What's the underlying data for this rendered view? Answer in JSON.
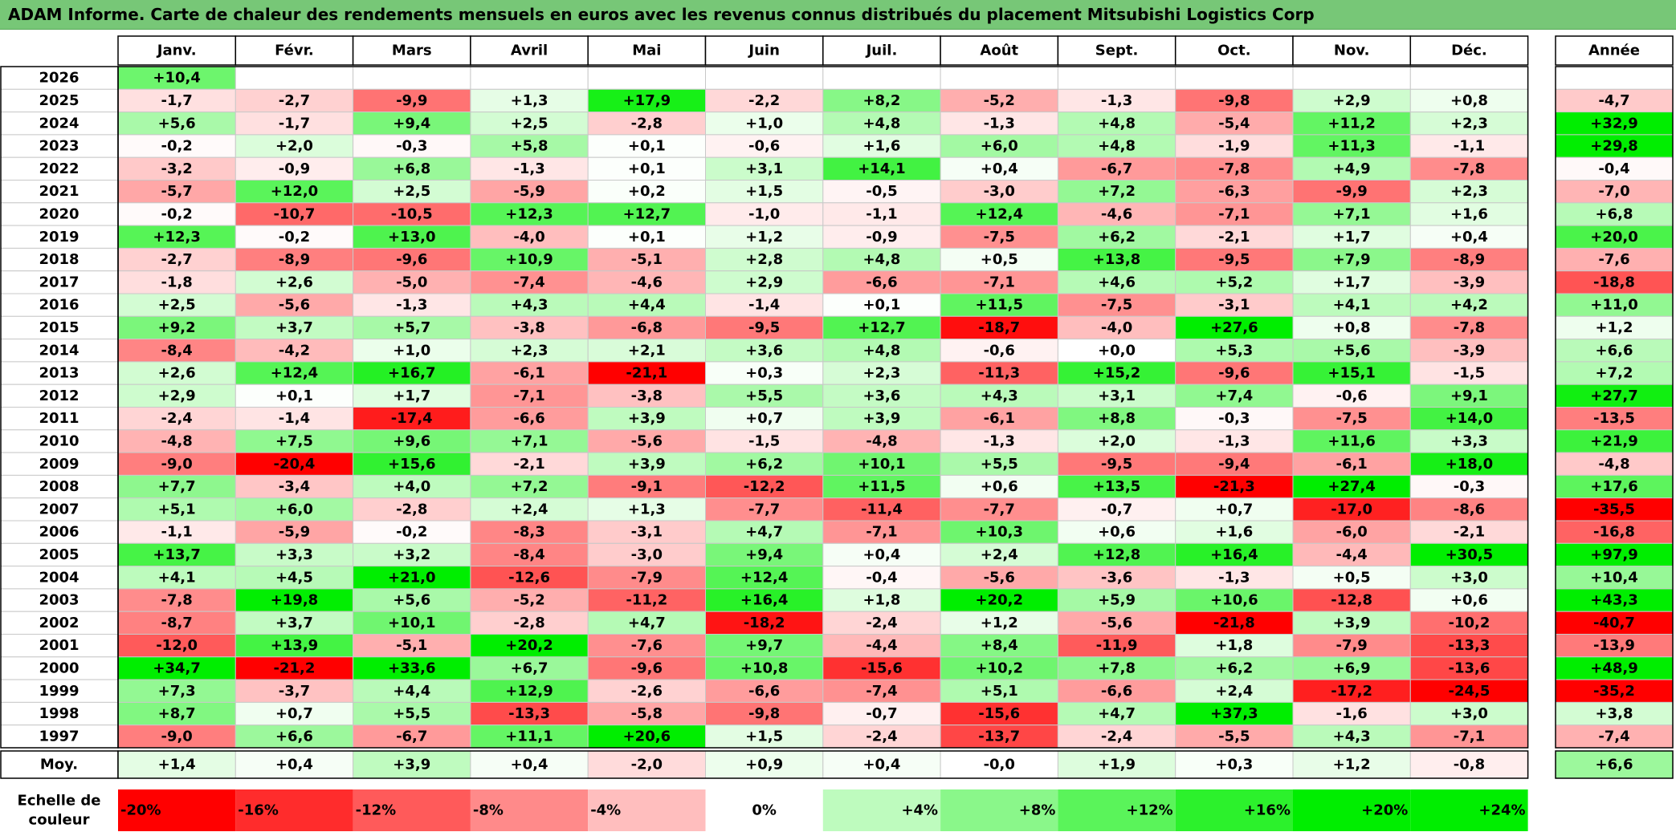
{
  "title": "ADAM Informe. Carte de chaleur des rendements mensuels en euros avec les revenus connus distribués du placement Mitsubishi Logistics Corp",
  "chart_data": {
    "type": "heatmap",
    "title": "ADAM Informe. Carte de chaleur des rendements mensuels en euros avec les revenus connus distribués du placement Mitsubishi Logistics Corp",
    "columns": [
      "Janv.",
      "Févr.",
      "Mars",
      "Avril",
      "Mai",
      "Juin",
      "Juil.",
      "Août",
      "Sept.",
      "Oct.",
      "Nov.",
      "Déc."
    ],
    "year_header": "Année",
    "rows": [
      {
        "year": "2026",
        "values": [
          "+10,4",
          "",
          "",
          "",
          "",
          "",
          "",
          "",
          "",
          "",
          "",
          ""
        ],
        "annual": ""
      },
      {
        "year": "2025",
        "values": [
          "-1,7",
          "-2,7",
          "-9,9",
          "+1,3",
          "+17,9",
          "-2,2",
          "+8,2",
          "-5,2",
          "-1,3",
          "-9,8",
          "+2,9",
          "+0,8"
        ],
        "annual": "-4,7"
      },
      {
        "year": "2024",
        "values": [
          "+5,6",
          "-1,7",
          "+9,4",
          "+2,5",
          "-2,8",
          "+1,0",
          "+4,8",
          "-1,3",
          "+4,8",
          "-5,4",
          "+11,2",
          "+2,3"
        ],
        "annual": "+32,9"
      },
      {
        "year": "2023",
        "values": [
          "-0,2",
          "+2,0",
          "-0,3",
          "+5,8",
          "+0,1",
          "-0,6",
          "+1,6",
          "+6,0",
          "+4,8",
          "-1,9",
          "+11,3",
          "-1,1"
        ],
        "annual": "+29,8"
      },
      {
        "year": "2022",
        "values": [
          "-3,2",
          "-0,9",
          "+6,8",
          "-1,3",
          "+0,1",
          "+3,1",
          "+14,1",
          "+0,4",
          "-6,7",
          "-7,8",
          "+4,9",
          "-7,8"
        ],
        "annual": "-0,4"
      },
      {
        "year": "2021",
        "values": [
          "-5,7",
          "+12,0",
          "+2,5",
          "-5,9",
          "+0,2",
          "+1,5",
          "-0,5",
          "-3,0",
          "+7,2",
          "-6,3",
          "-9,9",
          "+2,3"
        ],
        "annual": "-7,0"
      },
      {
        "year": "2020",
        "values": [
          "-0,2",
          "-10,7",
          "-10,5",
          "+12,3",
          "+12,7",
          "-1,0",
          "-1,1",
          "+12,4",
          "-4,6",
          "-7,1",
          "+7,1",
          "+1,6"
        ],
        "annual": "+6,8"
      },
      {
        "year": "2019",
        "values": [
          "+12,3",
          "-0,2",
          "+13,0",
          "-4,0",
          "+0,1",
          "+1,2",
          "-0,9",
          "-7,5",
          "+6,2",
          "-2,1",
          "+1,7",
          "+0,4"
        ],
        "annual": "+20,0"
      },
      {
        "year": "2018",
        "values": [
          "-2,7",
          "-8,9",
          "-9,6",
          "+10,9",
          "-5,1",
          "+2,8",
          "+4,8",
          "+0,5",
          "+13,8",
          "-9,5",
          "+7,9",
          "-8,9"
        ],
        "annual": "-7,6"
      },
      {
        "year": "2017",
        "values": [
          "-1,8",
          "+2,6",
          "-5,0",
          "-7,4",
          "-4,6",
          "+2,9",
          "-6,6",
          "-7,1",
          "+4,6",
          "+5,2",
          "+1,7",
          "-3,9"
        ],
        "annual": "-18,8"
      },
      {
        "year": "2016",
        "values": [
          "+2,5",
          "-5,6",
          "-1,3",
          "+4,3",
          "+4,4",
          "-1,4",
          "+0,1",
          "+11,5",
          "-7,5",
          "-3,1",
          "+4,1",
          "+4,2"
        ],
        "annual": "+11,0"
      },
      {
        "year": "2015",
        "values": [
          "+9,2",
          "+3,7",
          "+5,7",
          "-3,8",
          "-6,8",
          "-9,5",
          "+12,7",
          "-18,7",
          "-4,0",
          "+27,6",
          "+0,8",
          "-7,8"
        ],
        "annual": "+1,2"
      },
      {
        "year": "2014",
        "values": [
          "-8,4",
          "-4,2",
          "+1,0",
          "+2,3",
          "+2,1",
          "+3,6",
          "+4,8",
          "-0,6",
          "+0,0",
          "+5,3",
          "+5,6",
          "-3,9"
        ],
        "annual": "+6,6"
      },
      {
        "year": "2013",
        "values": [
          "+2,6",
          "+12,4",
          "+16,7",
          "-6,1",
          "-21,1",
          "+0,3",
          "+2,3",
          "-11,3",
          "+15,2",
          "-9,6",
          "+15,1",
          "-1,5"
        ],
        "annual": "+7,2"
      },
      {
        "year": "2012",
        "values": [
          "+2,9",
          "+0,1",
          "+1,7",
          "-7,1",
          "-3,8",
          "+5,5",
          "+3,6",
          "+4,3",
          "+3,1",
          "+7,4",
          "-0,6",
          "+9,1"
        ],
        "annual": "+27,7"
      },
      {
        "year": "2011",
        "values": [
          "-2,4",
          "-1,4",
          "-17,4",
          "-6,6",
          "+3,9",
          "+0,7",
          "+3,9",
          "-6,1",
          "+8,8",
          "-0,3",
          "-7,5",
          "+14,0"
        ],
        "annual": "-13,5"
      },
      {
        "year": "2010",
        "values": [
          "-4,8",
          "+7,5",
          "+9,6",
          "+7,1",
          "-5,6",
          "-1,5",
          "-4,8",
          "-1,3",
          "+2,0",
          "-1,3",
          "+11,6",
          "+3,3"
        ],
        "annual": "+21,9"
      },
      {
        "year": "2009",
        "values": [
          "-9,0",
          "-20,4",
          "+15,6",
          "-2,1",
          "+3,9",
          "+6,2",
          "+10,1",
          "+5,5",
          "-9,5",
          "-9,4",
          "-6,1",
          "+18,0"
        ],
        "annual": "-4,8"
      },
      {
        "year": "2008",
        "values": [
          "+7,7",
          "-3,4",
          "+4,0",
          "+7,2",
          "-9,1",
          "-12,2",
          "+11,5",
          "+0,6",
          "+13,5",
          "-21,3",
          "+27,4",
          "-0,3"
        ],
        "annual": "+17,6"
      },
      {
        "year": "2007",
        "values": [
          "+5,1",
          "+6,0",
          "-2,8",
          "+2,4",
          "+1,3",
          "-7,7",
          "-11,4",
          "-7,7",
          "-0,7",
          "+0,7",
          "-17,0",
          "-8,6"
        ],
        "annual": "-35,5"
      },
      {
        "year": "2006",
        "values": [
          "-1,1",
          "-5,9",
          "-0,2",
          "-8,3",
          "-3,1",
          "+4,7",
          "-7,1",
          "+10,3",
          "+0,6",
          "+1,6",
          "-6,0",
          "-2,1"
        ],
        "annual": "-16,8"
      },
      {
        "year": "2005",
        "values": [
          "+13,7",
          "+3,3",
          "+3,2",
          "-8,4",
          "-3,0",
          "+9,4",
          "+0,4",
          "+2,4",
          "+12,8",
          "+16,4",
          "-4,4",
          "+30,5"
        ],
        "annual": "+97,9"
      },
      {
        "year": "2004",
        "values": [
          "+4,1",
          "+4,5",
          "+21,0",
          "-12,6",
          "-7,9",
          "+12,4",
          "-0,4",
          "-5,6",
          "-3,6",
          "-1,3",
          "+0,5",
          "+3,0"
        ],
        "annual": "+10,4"
      },
      {
        "year": "2003",
        "values": [
          "-7,8",
          "+19,8",
          "+5,6",
          "-5,2",
          "-11,2",
          "+16,4",
          "+1,8",
          "+20,2",
          "+5,9",
          "+10,6",
          "-12,8",
          "+0,6"
        ],
        "annual": "+43,3"
      },
      {
        "year": "2002",
        "values": [
          "-8,7",
          "+3,7",
          "+10,1",
          "-2,8",
          "+4,7",
          "-18,2",
          "-2,4",
          "+1,2",
          "-5,6",
          "-21,8",
          "+3,9",
          "-10,2"
        ],
        "annual": "-40,7"
      },
      {
        "year": "2001",
        "values": [
          "-12,0",
          "+13,9",
          "-5,1",
          "+20,2",
          "-7,6",
          "+9,7",
          "-4,4",
          "+8,4",
          "-11,9",
          "+1,8",
          "-7,9",
          "-13,3"
        ],
        "annual": "-13,9"
      },
      {
        "year": "2000",
        "values": [
          "+34,7",
          "-21,2",
          "+33,6",
          "+6,7",
          "-9,6",
          "+10,8",
          "-15,6",
          "+10,2",
          "+7,8",
          "+6,2",
          "+6,9",
          "-13,6"
        ],
        "annual": "+48,9"
      },
      {
        "year": "1999",
        "values": [
          "+7,3",
          "-3,7",
          "+4,4",
          "+12,9",
          "-2,6",
          "-6,6",
          "-7,4",
          "+5,1",
          "-6,6",
          "+2,4",
          "-17,2",
          "-24,5"
        ],
        "annual": "-35,2"
      },
      {
        "year": "1998",
        "values": [
          "+8,7",
          "+0,7",
          "+5,5",
          "-13,3",
          "-5,8",
          "-9,8",
          "-0,7",
          "-15,6",
          "+4,7",
          "+37,3",
          "-1,6",
          "+3,0"
        ],
        "annual": "+3,8"
      },
      {
        "year": "1997",
        "values": [
          "-9,0",
          "+6,6",
          "-6,7",
          "+11,1",
          "+20,6",
          "+1,5",
          "-2,4",
          "-13,7",
          "-2,4",
          "-5,5",
          "+4,3",
          "-7,1"
        ],
        "annual": "-7,4"
      }
    ],
    "average": {
      "label": "Moy.",
      "values": [
        "+1,4",
        "+0,4",
        "+3,9",
        "+0,4",
        "-2,0",
        "+0,9",
        "+0,4",
        "-0,0",
        "+1,9",
        "+0,3",
        "+1,2",
        "-0,8"
      ],
      "annual": "+6,6"
    },
    "scale": {
      "label_line1": "Echelle de",
      "label_line2": "couleur",
      "steps": [
        "-20%",
        "-16%",
        "-12%",
        "-8%",
        "-4%",
        "0%",
        "+4%",
        "+8%",
        "+12%",
        "+16%",
        "+20%",
        "+24%"
      ],
      "step_values": [
        -20,
        -16,
        -12,
        -8,
        -4,
        0,
        4,
        8,
        12,
        16,
        20,
        24
      ]
    },
    "colors": {
      "negative": "#ff0000",
      "positive": "#00ee00",
      "neutral": "#ffffff"
    }
  }
}
